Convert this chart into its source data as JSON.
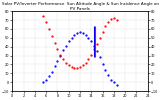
{
  "title": "Solar PV/Inverter Performance  Sun Altitude Angle & Sun Incidence Angle on PV Panels",
  "background_color": "#ffffff",
  "grid_color": "#888888",
  "ylim_left": [
    -10,
    80
  ],
  "ylim_right": [
    -10,
    80
  ],
  "xlim": [
    0,
    24
  ],
  "sun_altitude": {
    "x": [
      5.5,
      6.0,
      6.5,
      7.0,
      7.5,
      8.0,
      8.5,
      9.0,
      9.5,
      10.0,
      10.5,
      11.0,
      11.5,
      12.0,
      12.5,
      13.0,
      13.5,
      14.0,
      14.5,
      15.0,
      15.5,
      16.0,
      16.5,
      17.0,
      17.5,
      18.0,
      18.5
    ],
    "y": [
      0,
      3,
      7,
      12,
      18,
      24,
      30,
      36,
      41,
      46,
      50,
      53,
      55,
      56,
      55,
      53,
      50,
      46,
      41,
      35,
      28,
      21,
      14,
      8,
      3,
      0,
      -3
    ],
    "color": "#0000ff",
    "markersize": 1.2
  },
  "sun_incidence": {
    "x": [
      5.5,
      6.0,
      6.5,
      7.0,
      7.5,
      8.0,
      8.5,
      9.0,
      9.5,
      10.0,
      10.5,
      11.0,
      11.5,
      12.0,
      12.5,
      13.0,
      13.5,
      14.0,
      14.5,
      15.0,
      15.5,
      16.0,
      16.5,
      17.0,
      17.5,
      18.0,
      18.5
    ],
    "y": [
      75,
      68,
      60,
      52,
      44,
      37,
      31,
      26,
      22,
      19,
      17,
      16,
      16,
      17,
      19,
      22,
      26,
      31,
      37,
      43,
      50,
      57,
      63,
      68,
      71,
      72,
      70
    ],
    "color": "#ff0000",
    "markersize": 1.2
  },
  "vline_x_blue": 14.5,
  "vline_x_red": 14.6,
  "vline_ymin": 28,
  "vline_ymax": 63,
  "xticks": [
    0,
    2,
    4,
    6,
    8,
    10,
    12,
    14,
    16,
    18,
    20,
    22,
    24
  ],
  "yticks": [
    -10,
    0,
    10,
    20,
    30,
    40,
    50,
    60,
    70,
    80
  ],
  "title_fontsize": 3.0,
  "tick_fontsize": 2.5
}
